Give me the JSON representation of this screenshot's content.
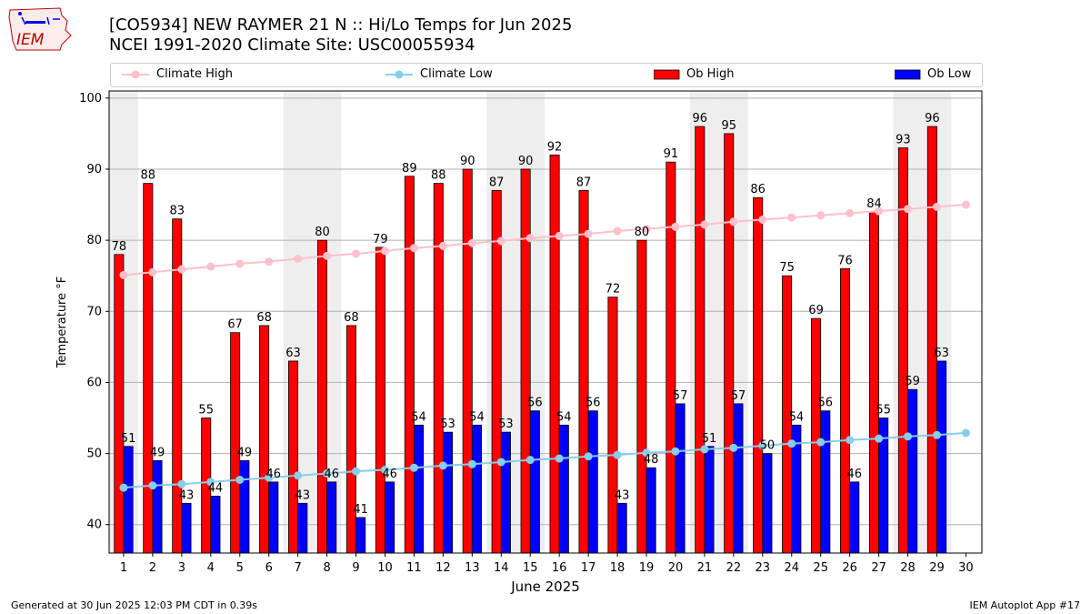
{
  "header": {
    "title_line1": "[CO5934] NEW RAYMER 21 N :: Hi/Lo Temps for Jun 2025",
    "title_line2": "NCEI 1991-2020 Climate Site: USC00055934",
    "logo_text": "IEM"
  },
  "footer": {
    "left": "Generated at 30 Jun 2025 12:03 PM CDT in 0.39s",
    "right": "IEM Autoplot App #17"
  },
  "colors": {
    "ob_high": "#ff0000",
    "ob_low": "#0000ff",
    "climate_high": "#ffc0cb",
    "climate_low": "#87ceeb",
    "weekend_shade": "#eeeeee",
    "grid": "#b0b0b0"
  },
  "chart_data": {
    "type": "bar",
    "xlabel": "June 2025",
    "ylabel": "Temperature °F",
    "ylim": [
      36,
      101
    ],
    "yticks": [
      40,
      50,
      60,
      70,
      80,
      90,
      100
    ],
    "grid": true,
    "legend_position": "top",
    "categories": [
      "1",
      "2",
      "3",
      "4",
      "5",
      "6",
      "7",
      "8",
      "9",
      "10",
      "11",
      "12",
      "13",
      "14",
      "15",
      "16",
      "17",
      "18",
      "19",
      "20",
      "21",
      "22",
      "23",
      "24",
      "25",
      "26",
      "27",
      "28",
      "29",
      "30"
    ],
    "weekend_days": [
      1,
      7,
      8,
      14,
      15,
      21,
      22,
      28,
      29
    ],
    "series": [
      {
        "name": "Ob High",
        "kind": "bar",
        "color": "#ff0000",
        "values": [
          78,
          88,
          83,
          55,
          67,
          68,
          63,
          80,
          68,
          79,
          89,
          88,
          90,
          87,
          90,
          92,
          87,
          72,
          80,
          91,
          96,
          95,
          86,
          75,
          69,
          76,
          84,
          93,
          96,
          null
        ]
      },
      {
        "name": "Ob Low",
        "kind": "bar",
        "color": "#0000ff",
        "values": [
          51,
          49,
          43,
          44,
          49,
          46,
          43,
          46,
          41,
          46,
          54,
          53,
          54,
          53,
          56,
          54,
          56,
          43,
          48,
          57,
          51,
          57,
          50,
          54,
          56,
          46,
          55,
          59,
          63,
          null
        ]
      },
      {
        "name": "Climate High",
        "kind": "line",
        "color": "#ffc0cb",
        "values": [
          75.1,
          75.5,
          75.9,
          76.3,
          76.7,
          77.0,
          77.4,
          77.8,
          78.1,
          78.5,
          78.9,
          79.2,
          79.6,
          79.9,
          80.3,
          80.6,
          80.9,
          81.3,
          81.6,
          81.9,
          82.2,
          82.6,
          82.9,
          83.2,
          83.5,
          83.8,
          84.1,
          84.4,
          84.7,
          85.0
        ]
      },
      {
        "name": "Climate Low",
        "kind": "line",
        "color": "#87ceeb",
        "values": [
          45.2,
          45.5,
          45.7,
          46.0,
          46.3,
          46.6,
          46.9,
          47.2,
          47.5,
          47.7,
          48.0,
          48.3,
          48.5,
          48.8,
          49.1,
          49.3,
          49.6,
          49.8,
          50.1,
          50.3,
          50.6,
          50.8,
          51.1,
          51.4,
          51.6,
          51.9,
          52.1,
          52.4,
          52.6,
          52.9
        ]
      }
    ]
  }
}
